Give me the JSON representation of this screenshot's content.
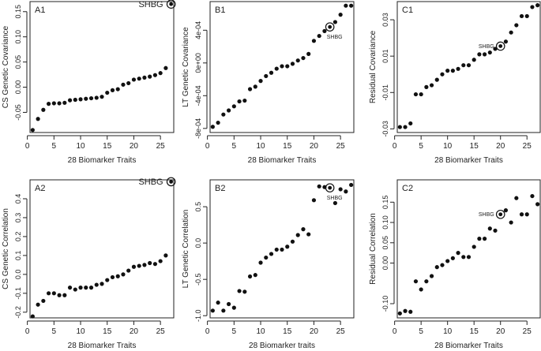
{
  "chart_data": [
    {
      "type": "scatter",
      "panel_label": "A1",
      "xlabel": "28 Biomarker Traits",
      "ylabel": "CS Genetic Covariance",
      "xlim": [
        0.5,
        27.5
      ],
      "ylim": [
        -0.09,
        0.17
      ],
      "xticks": [
        0,
        5,
        10,
        15,
        20,
        25
      ],
      "xtick_labels": [
        "0",
        "5",
        "10",
        "15",
        "20",
        "25"
      ],
      "yticks": [
        -0.05,
        0.0,
        0.05,
        0.1,
        0.15
      ],
      "ytick_labels": [
        "-0.05",
        "0.00",
        "0.05",
        "0.10",
        "0.15"
      ],
      "x": [
        1,
        2,
        3,
        4,
        5,
        6,
        7,
        8,
        9,
        10,
        11,
        12,
        13,
        14,
        15,
        16,
        17,
        18,
        19,
        20,
        21,
        22,
        23,
        24,
        25,
        26
      ],
      "y": [
        -0.085,
        -0.063,
        -0.045,
        -0.033,
        -0.032,
        -0.032,
        -0.031,
        -0.026,
        -0.025,
        -0.024,
        -0.023,
        -0.022,
        -0.021,
        -0.019,
        -0.011,
        -0.006,
        -0.004,
        0.005,
        0.008,
        0.015,
        0.017,
        0.019,
        0.021,
        0.024,
        0.028,
        0.038
      ],
      "highlight": {
        "label": "SHBG",
        "x": 27,
        "y": 0.165,
        "label_pos": "left",
        "label_size": "large"
      }
    },
    {
      "type": "scatter",
      "panel_label": "B1",
      "xlabel": "28 Biomarker Traits",
      "ylabel": "LT Genetic Covariance",
      "xlim": [
        0.5,
        27.5
      ],
      "ylim": [
        -0.00085,
        0.00075
      ],
      "xticks": [
        0,
        5,
        10,
        15,
        20,
        25
      ],
      "xtick_labels": [
        "0",
        "5",
        "10",
        "15",
        "20",
        "25"
      ],
      "yticks": [
        -0.0008,
        -0.0004,
        0.0,
        0.0004
      ],
      "ytick_labels": [
        "-8e-04",
        "-4e-04",
        "0e+00",
        "4e-04"
      ],
      "x": [
        1,
        2,
        3,
        4,
        5,
        6,
        7,
        8,
        9,
        10,
        11,
        12,
        13,
        14,
        15,
        16,
        17,
        18,
        19,
        20,
        21,
        22,
        24,
        25,
        26,
        27
      ],
      "y": [
        -0.00078,
        -0.00073,
        -0.00063,
        -0.00058,
        -0.00053,
        -0.00047,
        -0.00046,
        -0.00032,
        -0.00029,
        -0.00022,
        -0.00016,
        -0.00012,
        -7e-05,
        -4e-05,
        -4e-05,
        -1e-05,
        3e-05,
        6e-05,
        0.00011,
        0.00027,
        0.00033,
        0.00039,
        0.0005,
        0.00059,
        0.0007,
        0.0007
      ],
      "highlight": {
        "label": "SHBG",
        "x": 23,
        "y": 0.00044,
        "label_pos": "below",
        "label_size": "small"
      }
    },
    {
      "type": "scatter",
      "panel_label": "C1",
      "xlabel": "28 Biomarker Traits",
      "ylabel": "Residual Covariance",
      "xlim": [
        0.5,
        27.5
      ],
      "ylim": [
        -0.032,
        0.04
      ],
      "xticks": [
        0,
        5,
        10,
        15,
        20,
        25
      ],
      "xtick_labels": [
        "0",
        "5",
        "10",
        "15",
        "20",
        "25"
      ],
      "yticks": [
        -0.03,
        -0.01,
        0.01,
        0.03
      ],
      "ytick_labels": [
        "-0.03",
        "-0.01",
        "0.01",
        "0.03"
      ],
      "x": [
        1,
        2,
        3,
        4,
        5,
        6,
        7,
        8,
        9,
        10,
        11,
        12,
        13,
        14,
        15,
        16,
        17,
        18,
        19,
        21,
        22,
        23,
        24,
        25,
        26,
        27
      ],
      "y": [
        -0.029,
        -0.029,
        -0.027,
        -0.011,
        -0.011,
        -0.007,
        -0.006,
        -0.003,
        0.0,
        0.002,
        0.002,
        0.003,
        0.005,
        0.005,
        0.008,
        0.011,
        0.011,
        0.012,
        0.014,
        0.018,
        0.023,
        0.027,
        0.032,
        0.032,
        0.037,
        0.038
      ],
      "highlight": {
        "label": "SHBG",
        "x": 20,
        "y": 0.0155,
        "label_pos": "left",
        "label_size": "small"
      }
    },
    {
      "type": "scatter",
      "panel_label": "A2",
      "xlabel": "28 Biomarker Traits",
      "ylabel": "CS Genetic Correlation",
      "xlim": [
        0.5,
        27.5
      ],
      "ylim": [
        -0.23,
        0.5
      ],
      "xticks": [
        0,
        5,
        10,
        15,
        20,
        25
      ],
      "xtick_labels": [
        "0",
        "5",
        "10",
        "15",
        "20",
        "25"
      ],
      "yticks": [
        -0.2,
        -0.1,
        0.0,
        0.1,
        0.2,
        0.3,
        0.4
      ],
      "ytick_labels": [
        "-0.2",
        "-0.1",
        "0.0",
        "0.1",
        "0.2",
        "0.3",
        "0.4"
      ],
      "x": [
        1,
        2,
        3,
        4,
        5,
        6,
        7,
        8,
        9,
        10,
        11,
        12,
        13,
        14,
        15,
        16,
        17,
        18,
        19,
        20,
        21,
        22,
        23,
        24,
        25,
        26
      ],
      "y": [
        -0.222,
        -0.16,
        -0.14,
        -0.1,
        -0.1,
        -0.11,
        -0.11,
        -0.07,
        -0.08,
        -0.07,
        -0.07,
        -0.07,
        -0.055,
        -0.05,
        -0.03,
        -0.015,
        -0.01,
        0.0,
        0.02,
        0.04,
        0.045,
        0.05,
        0.06,
        0.055,
        0.07,
        0.1
      ],
      "highlight": {
        "label": "SHBG",
        "x": 27,
        "y": 0.49,
        "label_pos": "left",
        "label_size": "large"
      }
    },
    {
      "type": "scatter",
      "panel_label": "B2",
      "xlabel": "28 Biomarker traits",
      "ylabel": "LT Genetic Correlation",
      "xlim": [
        0.5,
        27.5
      ],
      "ylim": [
        -1.03,
        0.87
      ],
      "xticks": [
        0,
        5,
        10,
        15,
        20,
        25
      ],
      "xtick_labels": [
        "0",
        "5",
        "10",
        "15",
        "20",
        "25"
      ],
      "yticks": [
        -1.0,
        -0.5,
        0.0,
        0.5
      ],
      "ytick_labels": [
        "-1.0",
        "-0.5",
        "0.0",
        "0.5"
      ],
      "x": [
        1,
        2,
        3,
        4,
        5,
        6,
        7,
        8,
        9,
        10,
        11,
        12,
        13,
        14,
        15,
        16,
        17,
        18,
        19,
        20,
        21,
        22,
        24,
        25,
        26,
        27
      ],
      "y": [
        -0.93,
        -0.82,
        -0.93,
        -0.84,
        -0.89,
        -0.66,
        -0.67,
        -0.46,
        -0.44,
        -0.27,
        -0.2,
        -0.15,
        -0.09,
        -0.09,
        -0.05,
        0.02,
        0.11,
        0.19,
        0.12,
        0.59,
        0.78,
        0.77,
        0.55,
        0.74,
        0.71,
        0.8
      ],
      "highlight": {
        "label": "SHBG",
        "x": 23,
        "y": 0.76,
        "label_pos": "below",
        "label_size": "small"
      }
    },
    {
      "type": "scatter",
      "panel_label": "C2",
      "xlabel": "28 Biomarker Traits",
      "ylabel": "Residual Correlation",
      "xlim": [
        0.5,
        27.5
      ],
      "ylim": [
        -0.135,
        0.205
      ],
      "xticks": [
        0,
        5,
        10,
        15,
        20,
        25
      ],
      "xtick_labels": [
        "0",
        "5",
        "10",
        "15",
        "20",
        "25"
      ],
      "yticks": [
        -0.1,
        0.0,
        0.05,
        0.1,
        0.15
      ],
      "ytick_labels": [
        "-0.10",
        "0.00",
        "0.05",
        "0.10",
        "0.15"
      ],
      "x": [
        1,
        2,
        3,
        4,
        5,
        6,
        7,
        8,
        9,
        10,
        11,
        12,
        13,
        14,
        15,
        16,
        17,
        18,
        19,
        21,
        22,
        23,
        24,
        25,
        26,
        27
      ],
      "y": [
        -0.124,
        -0.118,
        -0.12,
        -0.045,
        -0.065,
        -0.045,
        -0.032,
        -0.01,
        -0.005,
        0.005,
        0.012,
        0.025,
        0.015,
        0.015,
        0.04,
        0.06,
        0.06,
        0.085,
        0.08,
        0.13,
        0.1,
        0.16,
        0.12,
        0.12,
        0.165,
        0.145
      ],
      "highlight": {
        "label": "SHBG",
        "x": 20,
        "y": 0.12,
        "label_pos": "left",
        "label_size": "small"
      }
    }
  ]
}
